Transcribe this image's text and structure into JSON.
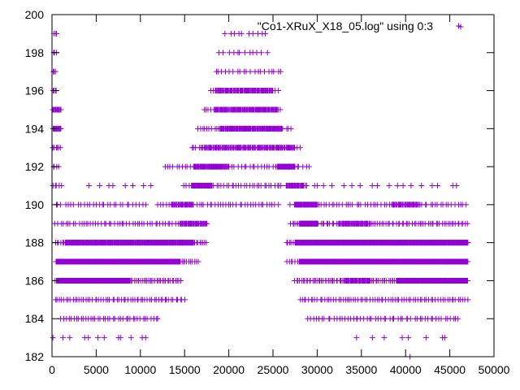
{
  "chart_data": {
    "type": "scatter",
    "title": "",
    "xlabel": "",
    "ylabel": "",
    "xlim": [
      0,
      50000
    ],
    "ylim": [
      182,
      200
    ],
    "xticks": [
      0,
      5000,
      10000,
      15000,
      20000,
      25000,
      30000,
      35000,
      40000,
      45000,
      50000
    ],
    "yticks": [
      182,
      184,
      186,
      188,
      190,
      192,
      194,
      196,
      198,
      200
    ],
    "grid": false,
    "legend_position": "top-right",
    "marker": "plus",
    "color": "#9400d3",
    "series": [
      {
        "name": "\"Co1-XRuX_X18_05.log\" using 0:3",
        "bands": [
          {
            "y": 199,
            "x_ranges": [
              [
                200,
                500,
                2
              ],
              [
                19500,
                24200,
                10
              ]
            ]
          },
          {
            "y": 198,
            "x_ranges": [
              [
                150,
                500,
                3
              ],
              [
                19000,
                24200,
                12
              ]
            ]
          },
          {
            "y": 197,
            "x_ranges": [
              [
                100,
                400,
                3
              ],
              [
                18500,
                26000,
                20
              ]
            ]
          },
          {
            "y": 196,
            "x_ranges": [
              [
                100,
                500,
                4
              ],
              [
                18000,
                25500,
                28
              ],
              [
                18500,
                25000,
                70
              ]
            ]
          },
          {
            "y": 195,
            "x_ranges": [
              [
                100,
                1000,
                14
              ],
              [
                17200,
                25800,
                35
              ],
              [
                18500,
                25500,
                90
              ]
            ]
          },
          {
            "y": 194,
            "x_ranges": [
              [
                100,
                1000,
                14
              ],
              [
                16500,
                27000,
                40
              ],
              [
                19000,
                26000,
                100
              ]
            ]
          },
          {
            "y": 193,
            "x_ranges": [
              [
                100,
                1000,
                6
              ],
              [
                15800,
                28000,
                45
              ],
              [
                17000,
                27500,
                100
              ]
            ]
          },
          {
            "y": 192,
            "x_ranges": [
              [
                100,
                700,
                4
              ],
              [
                12700,
                29000,
                50
              ],
              [
                16000,
                20000,
                60
              ],
              [
                25500,
                27500,
                40
              ]
            ]
          },
          {
            "y": 191,
            "x_ranges": [
              [
                100,
                1000,
                5
              ],
              [
                4500,
                11000,
                8
              ],
              [
                15000,
                26000,
                40
              ],
              [
                15800,
                18000,
                40
              ],
              [
                26500,
                28500,
                30
              ],
              [
                29000,
                46000,
                18
              ]
            ]
          },
          {
            "y": 190,
            "x_ranges": [
              [
                400,
                10500,
                30
              ],
              [
                12000,
                25500,
                45
              ],
              [
                13500,
                16000,
                30
              ],
              [
                27000,
                46800,
                65
              ],
              [
                27500,
                30000,
                45
              ],
              [
                38500,
                41500,
                30
              ]
            ]
          },
          {
            "y": 189,
            "x_ranges": [
              [
                400,
                16000,
                55
              ],
              [
                14500,
                17500,
                40
              ],
              [
                27000,
                47000,
                90
              ],
              [
                28000,
                30000,
                50
              ],
              [
                32500,
                36000,
                40
              ]
            ]
          },
          {
            "y": 188,
            "x_ranges": [
              [
                400,
                17500,
                90
              ],
              [
                1500,
                16000,
                260
              ],
              [
                26500,
                47000,
                110
              ],
              [
                27500,
                47000,
                420
              ]
            ]
          },
          {
            "y": 187,
            "x_ranges": [
              [
                400,
                16500,
                80
              ],
              [
                500,
                14500,
                340
              ],
              [
                26500,
                47000,
                80
              ],
              [
                28000,
                47000,
                460
              ]
            ]
          },
          {
            "y": 186,
            "x_ranges": [
              [
                400,
                14500,
                80
              ],
              [
                600,
                8800,
                200
              ],
              [
                27500,
                47000,
                110
              ],
              [
                33000,
                36000,
                40
              ],
              [
                39000,
                47000,
                180
              ]
            ]
          },
          {
            "y": 185,
            "x_ranges": [
              [
                400,
                15000,
                60
              ],
              [
                28000,
                47000,
                75
              ]
            ]
          },
          {
            "y": 184,
            "x_ranges": [
              [
                1000,
                12000,
                40
              ],
              [
                29000,
                46000,
                55
              ]
            ]
          },
          {
            "y": 183,
            "x_ranges": [
              [
                500,
                11000,
                12
              ],
              [
                34500,
                45000,
                8
              ]
            ]
          },
          {
            "y": 182,
            "x_ranges": [
              [
                40500,
                40800,
                1
              ]
            ]
          }
        ],
        "isolated_points": [
          [
            46000,
            199.4
          ],
          [
            500,
            199
          ],
          [
            28800,
            191
          ],
          [
            30000,
            191
          ]
        ]
      }
    ]
  }
}
